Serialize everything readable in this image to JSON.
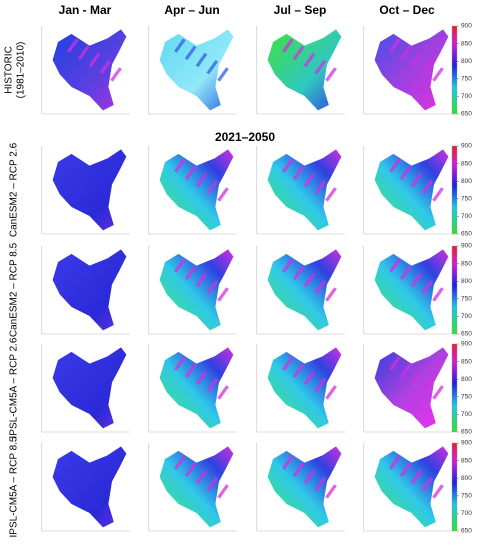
{
  "columns": [
    "Jan - Mar",
    "Apr – Jun",
    "Jul – Sep",
    "Oct – Dec"
  ],
  "rows": [
    {
      "label": "HISTORIC",
      "sublabel": "(1981–2010)"
    },
    {
      "label": "CanESM2 – RCP 2.6"
    },
    {
      "label": "CanESM2 – RCP 8.5"
    },
    {
      "label": "IPSL-CM5A – RCP 2.6"
    },
    {
      "label": "IPSL-CM5A – RCP 8.5"
    }
  ],
  "period": "2021–2050",
  "colorbar": {
    "ticks": [
      900,
      850,
      800,
      750,
      700,
      650
    ]
  }
}
